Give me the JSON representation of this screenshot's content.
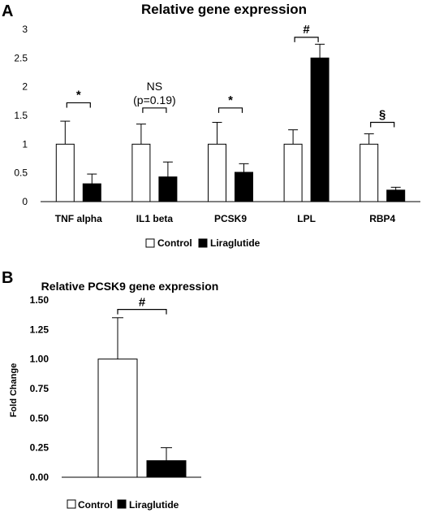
{
  "panels": [
    {
      "label": "A",
      "chart_data": {
        "type": "bar",
        "title": "Relative gene expression",
        "xlabel": "",
        "ylabel": "",
        "categories": [
          "TNF alpha",
          "IL1 beta",
          "PCSK9",
          "LPL",
          "RBP4"
        ],
        "series": [
          {
            "name": "Control",
            "values": [
              1.0,
              1.0,
              1.0,
              1.0,
              1.0
            ],
            "error": [
              0.4,
              0.35,
              0.38,
              0.25,
              0.18
            ],
            "color": "#ffffff"
          },
          {
            "name": "Liraglutide",
            "values": [
              0.31,
              0.43,
              0.51,
              2.5,
              0.2
            ],
            "error": [
              0.17,
              0.26,
              0.15,
              0.24,
              0.05
            ],
            "color": "#000000"
          }
        ],
        "ylim": [
          0,
          3
        ],
        "yticks": [
          "0",
          "0.5",
          "1",
          "1.5",
          "2",
          "2.5",
          "3"
        ],
        "ytick_values": [
          0,
          0.5,
          1,
          1.5,
          2,
          2.5,
          3
        ],
        "annotations": [
          {
            "category": "TNF alpha",
            "text": "*",
            "bracket_y": 1.72
          },
          {
            "category": "IL1 beta",
            "text": "NS",
            "text2": "(p=0.19)",
            "bracket_y": 1.63
          },
          {
            "category": "PCSK9",
            "text": "*",
            "bracket_y": 1.63
          },
          {
            "category": "LPL",
            "text": "#",
            "bracket_y": 2.86
          },
          {
            "category": "RBP4",
            "text": "§",
            "bracket_y": 1.38
          }
        ],
        "legend": {
          "position": "bottom",
          "items": [
            "Control",
            "Liraglutide"
          ]
        }
      }
    },
    {
      "label": "B",
      "chart_data": {
        "type": "bar",
        "title": "Relative PCSK9 gene expression",
        "xlabel": "",
        "ylabel": "Fold Change",
        "categories": [
          ""
        ],
        "series": [
          {
            "name": "Control",
            "values": [
              1.0
            ],
            "error": [
              0.35
            ],
            "color": "#ffffff"
          },
          {
            "name": "Liraglutide",
            "values": [
              0.14
            ],
            "error": [
              0.11
            ],
            "color": "#000000"
          }
        ],
        "ylim": [
          0,
          1.5
        ],
        "yticks": [
          "0.00",
          "0.25",
          "0.50",
          "0.75",
          "1.00",
          "1.25",
          "1.50"
        ],
        "ytick_values": [
          0,
          0.25,
          0.5,
          0.75,
          1.0,
          1.25,
          1.5
        ],
        "annotations": [
          {
            "text": "#",
            "bracket_y": 1.42
          }
        ],
        "legend": {
          "position": "bottom",
          "items": [
            "Control",
            "Liraglutide"
          ]
        }
      }
    }
  ]
}
